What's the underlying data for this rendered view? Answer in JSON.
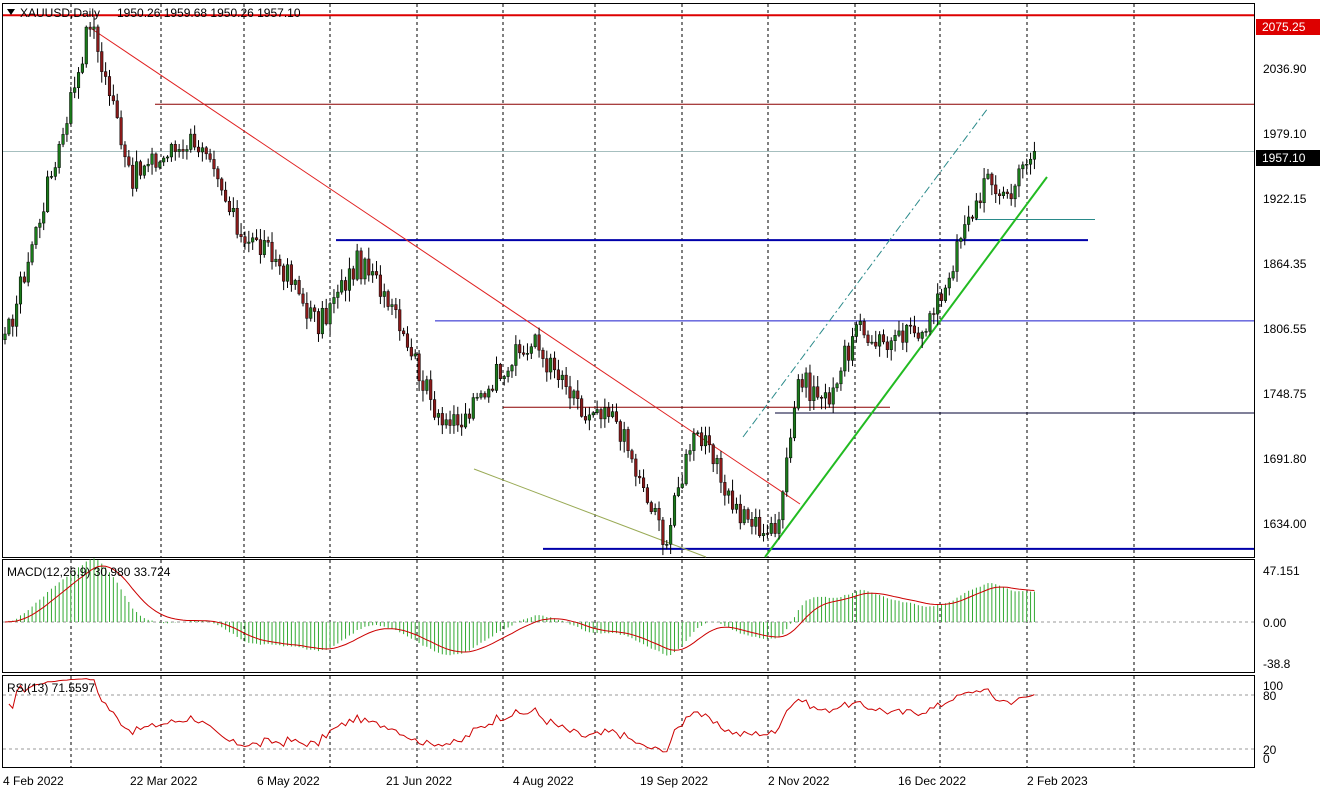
{
  "instrument": {
    "symbol_label": "XAUUSD,Daily",
    "ohlc_label": "1950.26 1959.68 1950.26 1957.10"
  },
  "colors": {
    "up_candle": "#1a7a1a",
    "down_candle": "#8a1a1a",
    "trend_red": "#e02020",
    "trend_green": "#22bb22",
    "level_blue": "#0000aa",
    "level_thin_blue": "#1a1acc",
    "level_dark_red": "#8b0000",
    "level_red_top": "#dd0000",
    "macd_hist": "#33aa33",
    "macd_signal": "#cc0000",
    "rsi_line": "#cc0000",
    "teal": "#2a8a8a"
  },
  "price_panel": {
    "price_ticks": [
      "2036.90",
      "1979.10",
      "1922.15",
      "1864.35",
      "1806.55",
      "1748.75",
      "1691.80",
      "1634.00"
    ],
    "badge_top": "2075.25",
    "badge_current": "1957.10"
  },
  "macd_panel": {
    "label": "MACD(12,26,9) 30.980 33.724",
    "ticks": [
      "47.151",
      "0.00",
      "-38.8"
    ]
  },
  "rsi_panel": {
    "label": "RSI(13) 71.5597",
    "ticks": [
      "100",
      "80",
      "20",
      "0"
    ]
  },
  "time_axis": [
    "4 Feb 2022",
    "22 Mar 2022",
    "6 May 2022",
    "21 Jun 2022",
    "4 Aug 2022",
    "19 Sep 2022",
    "2 Nov 2022",
    "16 Dec 2022",
    "2 Feb 2023"
  ],
  "chart_data": {
    "type": "candlestick",
    "symbol": "XAUUSD",
    "timeframe": "Daily",
    "ylim": [
      1605,
      2085
    ],
    "current": {
      "open": 1950.26,
      "high": 1959.68,
      "low": 1950.26,
      "close": 1957.1
    },
    "horizontal_levels": [
      2075.25,
      1998,
      1880,
      1810,
      1735,
      1730,
      1898,
      1612
    ],
    "anchor_points": [
      {
        "bar": 0,
        "price": 1790
      },
      {
        "bar": 13,
        "price": 1950
      },
      {
        "bar": 22,
        "price": 2070
      },
      {
        "bar": 33,
        "price": 1935
      },
      {
        "bar": 49,
        "price": 1970
      },
      {
        "bar": 60,
        "price": 1890
      },
      {
        "bar": 71,
        "price": 1860
      },
      {
        "bar": 81,
        "price": 1805
      },
      {
        "bar": 91,
        "price": 1860
      },
      {
        "bar": 100,
        "price": 1830
      },
      {
        "bar": 110,
        "price": 1740
      },
      {
        "bar": 117,
        "price": 1715
      },
      {
        "bar": 128,
        "price": 1770
      },
      {
        "bar": 137,
        "price": 1790
      },
      {
        "bar": 150,
        "price": 1725
      },
      {
        "bar": 158,
        "price": 1725
      },
      {
        "bar": 165,
        "price": 1660
      },
      {
        "bar": 171,
        "price": 1620
      },
      {
        "bar": 178,
        "price": 1720
      },
      {
        "bar": 190,
        "price": 1640
      },
      {
        "bar": 199,
        "price": 1625
      },
      {
        "bar": 205,
        "price": 1760
      },
      {
        "bar": 212,
        "price": 1740
      },
      {
        "bar": 220,
        "price": 1800
      },
      {
        "bar": 230,
        "price": 1790
      },
      {
        "bar": 240,
        "price": 1815
      },
      {
        "bar": 247,
        "price": 1880
      },
      {
        "bar": 253,
        "price": 1930
      },
      {
        "bar": 259,
        "price": 1920
      },
      {
        "bar": 266,
        "price": 1957
      }
    ]
  }
}
